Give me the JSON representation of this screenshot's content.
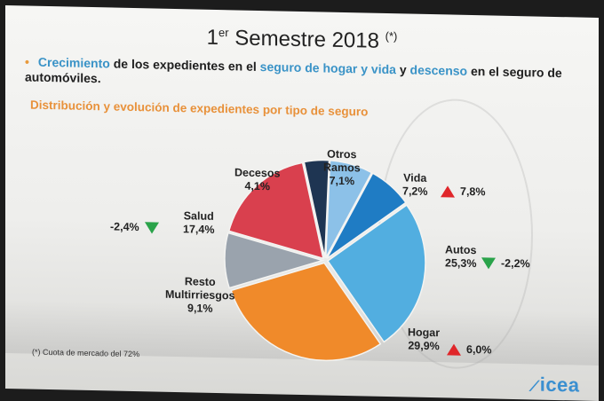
{
  "slide": {
    "title_main": "1",
    "title_sup": "er",
    "title_rest": " Semestre 2018",
    "title_note": "(*)",
    "bullet": {
      "p1": "Crecimiento",
      "p2": " de los expedientes en el ",
      "p3": "seguro de hogar y vida",
      "p4": " y ",
      "p5": "descenso",
      "p6": " en el seguro de automóviles.",
      "highlight_color": "#3a93c7"
    },
    "subtitle": "Distribución y evolución  de expedientes por tipo de seguro",
    "footnote": "(*) Cuota de mercado del 72%",
    "logo_text": "icea"
  },
  "chart_data": {
    "type": "pie",
    "slices": [
      {
        "name": "Vida",
        "pct_label": "7,2%",
        "value": 7.2,
        "color": "#1f7cc4",
        "change": "7,8%",
        "direction": "up"
      },
      {
        "name": "Autos",
        "pct_label": "25,3%",
        "value": 25.3,
        "color": "#52aee0",
        "change": "-2,2%",
        "direction": "down"
      },
      {
        "name": "Hogar",
        "pct_label": "29,9%",
        "value": 29.9,
        "color": "#f08a2a",
        "change": "6,0%",
        "direction": "up"
      },
      {
        "name": "Resto Multirriesgos",
        "name_lines": [
          "Resto",
          "Multirriesgos"
        ],
        "pct_label": "9,1%",
        "value": 9.1,
        "color": "#9aa3ad"
      },
      {
        "name": "Salud",
        "pct_label": "17,4%",
        "value": 17.4,
        "color": "#d9404e",
        "change": "-2,4%",
        "direction": "down"
      },
      {
        "name": "Decesos",
        "pct_label": "4,1%",
        "value": 4.1,
        "color": "#1e3552"
      },
      {
        "name": "Otros Ramos",
        "name_lines": [
          "Otros",
          "Ramos"
        ],
        "pct_label": "7,1%",
        "value": 7.1,
        "color": "#8cc1e8"
      }
    ],
    "colors": {
      "up": "#e0262a",
      "down": "#2aa34a"
    }
  }
}
